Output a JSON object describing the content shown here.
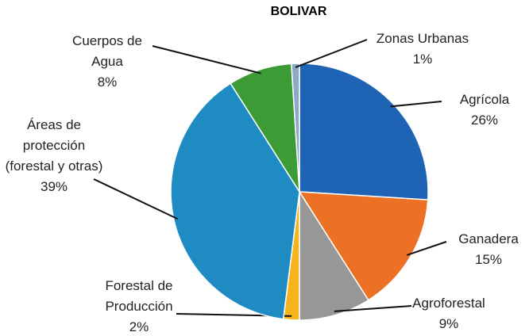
{
  "chart_data": {
    "type": "pie",
    "title": "BOLIVAR",
    "categories": [
      "Agrícola",
      "Ganadera",
      "Agroforestal",
      "Forestal de Producción",
      "Áreas de protección (forestal y otras)",
      "Cuerpos de Agua",
      "Zonas Urbanas"
    ],
    "values": [
      26,
      15,
      9,
      2,
      39,
      8,
      1
    ],
    "value_labels": [
      "26%",
      "15%",
      "9%",
      "2%",
      "39%",
      "8%",
      "1%"
    ],
    "colors": [
      "#1f64b4",
      "#ed7124",
      "#979797",
      "#f5b31c",
      "#1e8bc3",
      "#3d9b35",
      "#8ea9c8"
    ]
  }
}
